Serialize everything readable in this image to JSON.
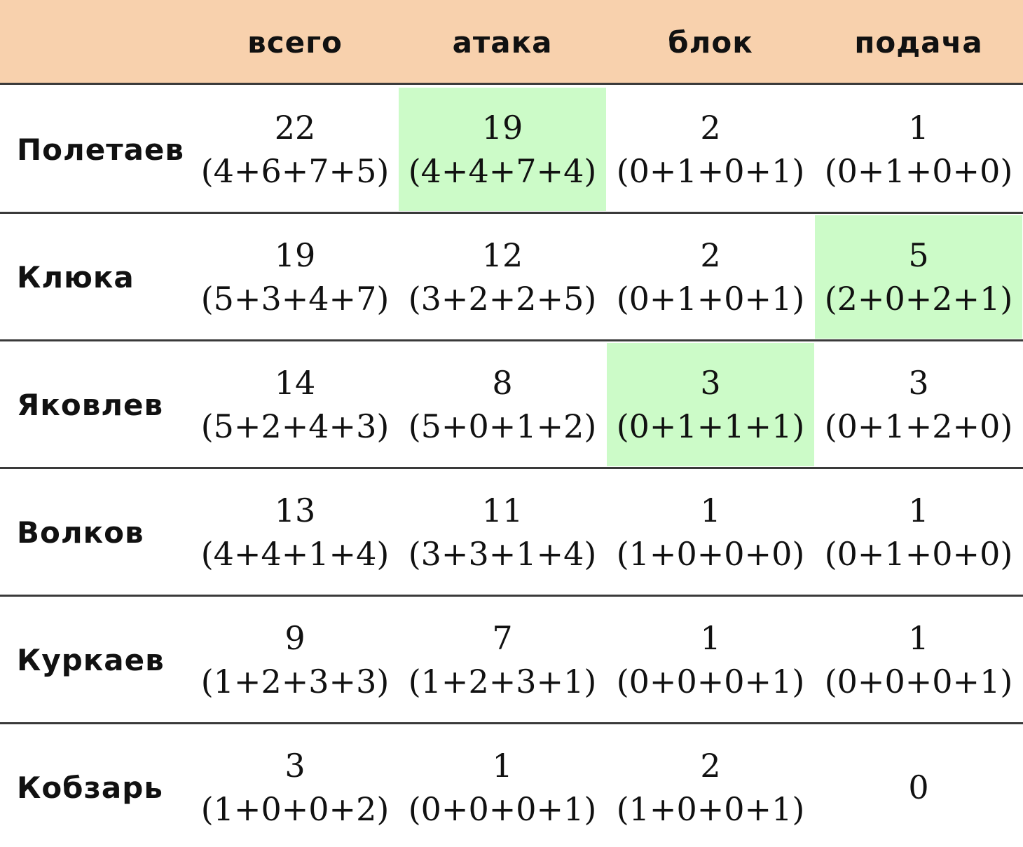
{
  "header": {
    "columns": [
      "всего",
      "атака",
      "блок",
      "подача"
    ]
  },
  "rows": [
    {
      "name": "Полетаев",
      "cells": [
        {
          "total": "22",
          "breakdown": "(4+6+7+5)",
          "highlight": false
        },
        {
          "total": "19",
          "breakdown": "(4+4+7+4)",
          "highlight": true
        },
        {
          "total": "2",
          "breakdown": "(0+1+0+1)",
          "highlight": false
        },
        {
          "total": "1",
          "breakdown": "(0+1+0+0)",
          "highlight": false
        }
      ]
    },
    {
      "name": "Клюка",
      "cells": [
        {
          "total": "19",
          "breakdown": "(5+3+4+7)",
          "highlight": false
        },
        {
          "total": "12",
          "breakdown": "(3+2+2+5)",
          "highlight": false
        },
        {
          "total": "2",
          "breakdown": "(0+1+0+1)",
          "highlight": false
        },
        {
          "total": "5",
          "breakdown": "(2+0+2+1)",
          "highlight": true
        }
      ]
    },
    {
      "name": "Яковлев",
      "cells": [
        {
          "total": "14",
          "breakdown": "(5+2+4+3)",
          "highlight": false
        },
        {
          "total": "8",
          "breakdown": "(5+0+1+2)",
          "highlight": false
        },
        {
          "total": "3",
          "breakdown": "(0+1+1+1)",
          "highlight": true
        },
        {
          "total": "3",
          "breakdown": "(0+1+2+0)",
          "highlight": false
        }
      ]
    },
    {
      "name": "Волков",
      "cells": [
        {
          "total": "13",
          "breakdown": "(4+4+1+4)",
          "highlight": false
        },
        {
          "total": "11",
          "breakdown": "(3+3+1+4)",
          "highlight": false
        },
        {
          "total": "1",
          "breakdown": "(1+0+0+0)",
          "highlight": false
        },
        {
          "total": "1",
          "breakdown": "(0+1+0+0)",
          "highlight": false
        }
      ]
    },
    {
      "name": "Куркаев",
      "cells": [
        {
          "total": "9",
          "breakdown": "(1+2+3+3)",
          "highlight": false
        },
        {
          "total": "7",
          "breakdown": "(1+2+3+1)",
          "highlight": false
        },
        {
          "total": "1",
          "breakdown": "(0+0+0+1)",
          "highlight": false
        },
        {
          "total": "1",
          "breakdown": "(0+0+0+1)",
          "highlight": false
        }
      ]
    },
    {
      "name": "Кобзарь",
      "cells": [
        {
          "total": "3",
          "breakdown": "(1+0+0+2)",
          "highlight": false
        },
        {
          "total": "1",
          "breakdown": "(0+0+0+1)",
          "highlight": false
        },
        {
          "total": "2",
          "breakdown": "(1+0+0+1)",
          "highlight": false
        },
        {
          "total": "0",
          "breakdown": "",
          "highlight": false
        }
      ]
    }
  ],
  "colors": {
    "header_background": "#f8d1ad",
    "highlight_background": "#ccfbc8",
    "rule_line": "#3a3a3a"
  }
}
